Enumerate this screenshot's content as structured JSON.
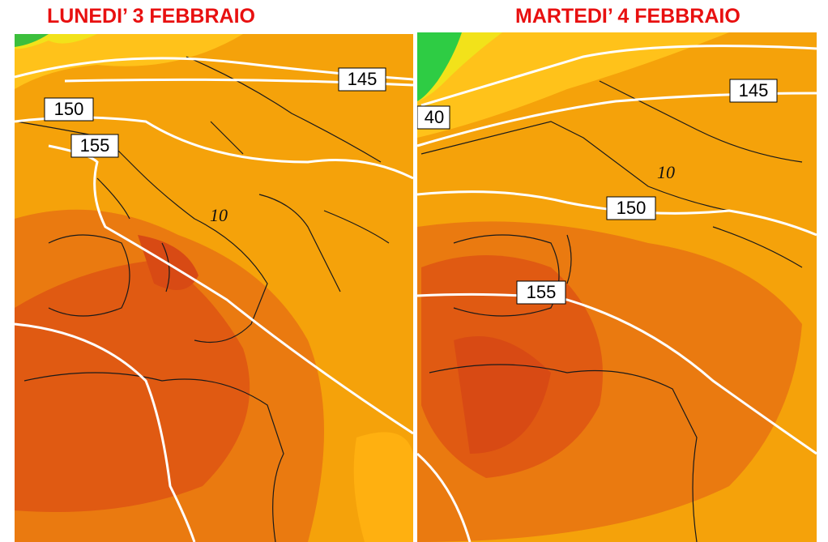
{
  "panels": [
    {
      "title": "LUNEDI’ 3 FEBBRAIO",
      "labels": [
        "145",
        "150",
        "155",
        "10"
      ]
    },
    {
      "title": "MARTEDI’ 4 FEBBRAIO",
      "labels": [
        "145",
        "40",
        "10",
        "150",
        "155"
      ]
    }
  ]
}
